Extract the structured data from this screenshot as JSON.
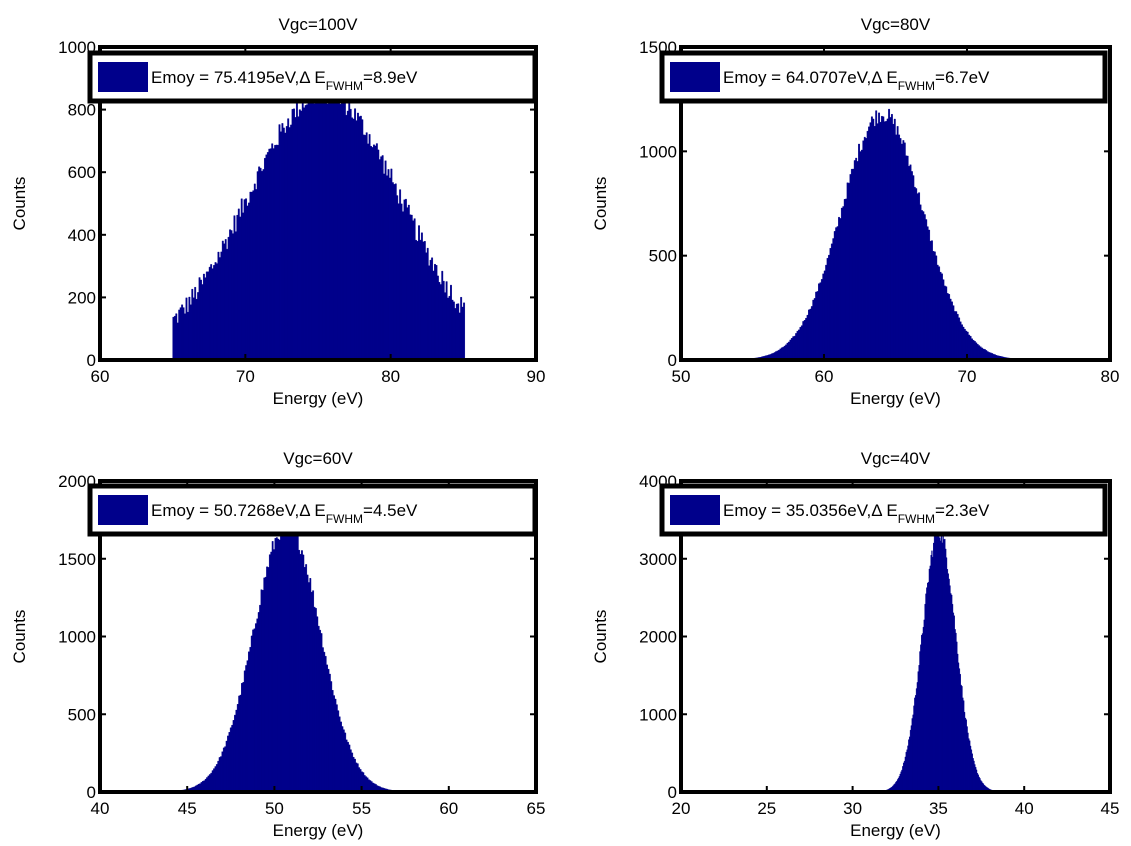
{
  "figure": {
    "bar_color": "#00008B",
    "axis_color": "#000000",
    "background": "#ffffff"
  },
  "chart_data": [
    {
      "type": "bar",
      "title": "Vgc=100V",
      "xlabel": "Energy (eV)",
      "ylabel": "Counts",
      "xlim": [
        60,
        90
      ],
      "ylim": [
        0,
        1000
      ],
      "xticks": [
        "60",
        "70",
        "80",
        "90"
      ],
      "yticks": [
        "0",
        "200",
        "400",
        "600",
        "800",
        "1000"
      ],
      "legend": {
        "position": "top",
        "text": "Emoy = 75.4195eV,Δ E",
        "sub": "FWHM",
        "suffix": "=8.9eV"
      },
      "series": [
        {
          "distribution": "uniform-noise-gaussian",
          "x_range": [
            65,
            85
          ],
          "mean": 75.4,
          "sigma": 5.3,
          "peak": 850,
          "bin_width": 0.1
        }
      ]
    },
    {
      "type": "bar",
      "title": "Vgc=80V",
      "xlabel": "Energy (eV)",
      "ylabel": "Counts",
      "xlim": [
        50,
        80
      ],
      "ylim": [
        0,
        1500
      ],
      "xticks": [
        "50",
        "60",
        "70",
        "80"
      ],
      "yticks": [
        "0",
        "500",
        "1000",
        "1500"
      ],
      "legend": {
        "position": "top",
        "text": "Emoy = 64.0707eV,Δ E",
        "sub": "FWHM",
        "suffix": "=6.7eV"
      },
      "series": [
        {
          "distribution": "gaussian",
          "x_range": [
            54,
            75
          ],
          "mean": 64.07,
          "sigma": 2.85,
          "peak": 1180,
          "bin_width": 0.1
        }
      ]
    },
    {
      "type": "bar",
      "title": "Vgc=60V",
      "xlabel": "Energy (eV)",
      "ylabel": "Counts",
      "xlim": [
        40,
        65
      ],
      "ylim": [
        0,
        2000
      ],
      "xticks": [
        "40",
        "45",
        "50",
        "55",
        "60",
        "65"
      ],
      "yticks": [
        "0",
        "500",
        "1000",
        "1500",
        "2000"
      ],
      "legend": {
        "position": "top",
        "text": "Emoy = 50.7268eV,Δ E",
        "sub": "FWHM",
        "suffix": "=4.5eV"
      },
      "series": [
        {
          "distribution": "gaussian",
          "x_range": [
            44.5,
            58
          ],
          "mean": 50.73,
          "sigma": 1.9,
          "peak": 1720,
          "bin_width": 0.08
        }
      ]
    },
    {
      "type": "bar",
      "title": "Vgc=40V",
      "xlabel": "Energy (eV)",
      "ylabel": "Counts",
      "xlim": [
        20,
        45
      ],
      "ylim": [
        0,
        4000
      ],
      "xticks": [
        "20",
        "25",
        "30",
        "35",
        "40",
        "45"
      ],
      "yticks": [
        "0",
        "1000",
        "2000",
        "3000",
        "4000"
      ],
      "legend": {
        "position": "top",
        "text": "Emoy = 35.0356eV,Δ E",
        "sub": "FWHM",
        "suffix": "=2.3eV"
      },
      "series": [
        {
          "distribution": "gaussian",
          "x_range": [
            31,
            39
          ],
          "mean": 35.04,
          "sigma": 0.98,
          "peak": 3350,
          "bin_width": 0.05
        }
      ]
    }
  ]
}
